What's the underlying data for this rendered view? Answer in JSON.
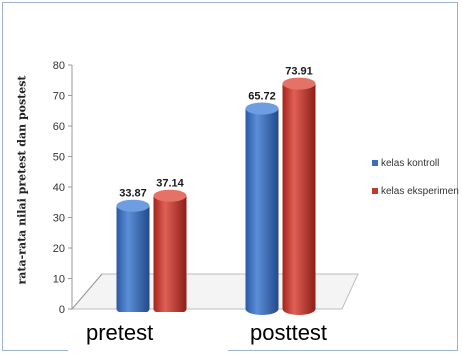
{
  "chart_data": {
    "type": "bar",
    "style": "3d-cylinder",
    "categories": [
      "pretest",
      "posttest"
    ],
    "series": [
      {
        "name": "kelas kontroll",
        "values": [
          33.87,
          65.72
        ],
        "color": "#3a6fbf",
        "value_labels": [
          "33.87",
          "65.72"
        ]
      },
      {
        "name": "kelas eksperimen",
        "values": [
          37.14,
          73.91
        ],
        "color": "#c0392b",
        "value_labels": [
          "37.14",
          "73.91"
        ]
      }
    ],
    "ylabel": "rata-rata nilai pretest dan postest",
    "xlabel": "",
    "ylim": [
      0,
      80
    ],
    "yticks": [
      0,
      10,
      20,
      30,
      40,
      50,
      60,
      70,
      80
    ],
    "legend_position": "right",
    "grid": false
  }
}
